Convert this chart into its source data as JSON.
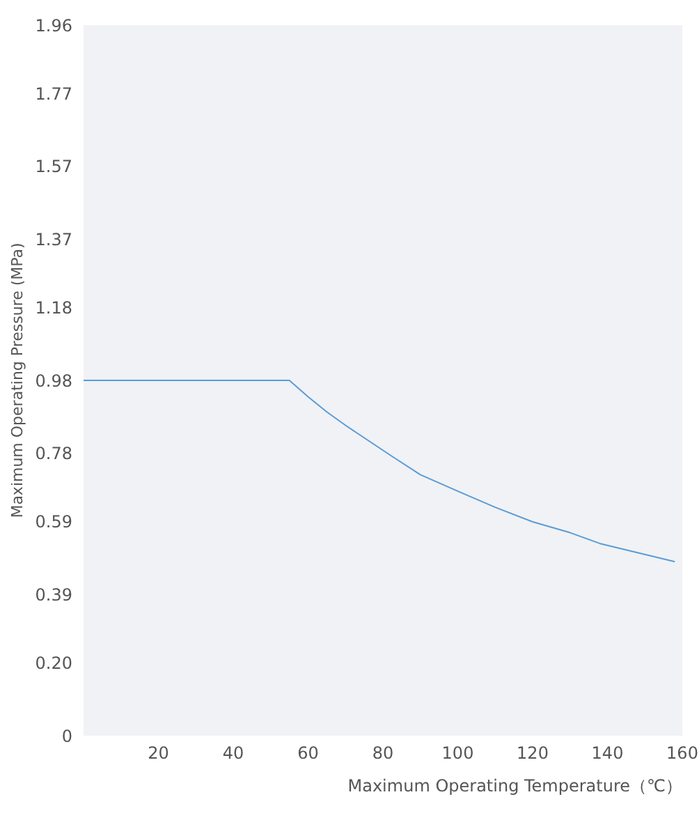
{
  "chart_data": {
    "type": "line",
    "xlabel": "Maximum Operating Temperature（℃）",
    "ylabel": "Maximum Operating Pressure (MPa)",
    "x": [
      0,
      55,
      60,
      65,
      70,
      82.5,
      90,
      101,
      110,
      120,
      130,
      138,
      148,
      158
    ],
    "series": [
      {
        "color": "#5b9bd5",
        "values": [
          0.98,
          0.98,
          0.935,
          0.893,
          0.856,
          0.77,
          0.72,
          0.67,
          0.63,
          0.59,
          0.56,
          0.53,
          0.505,
          0.48
        ]
      }
    ],
    "xlim": [
      0,
      160
    ],
    "xticks": [
      20,
      40,
      60,
      80,
      100,
      120,
      140,
      160
    ],
    "ylim": [
      0,
      1.96
    ],
    "yticks": [
      0,
      {
        "value": 0.2,
        "label": "0.20"
      },
      0.39,
      0.59,
      0.78,
      0.98,
      1.18,
      1.37,
      1.57,
      1.77,
      1.96
    ],
    "grid": false,
    "marker": "none",
    "line_style": "solid"
  }
}
